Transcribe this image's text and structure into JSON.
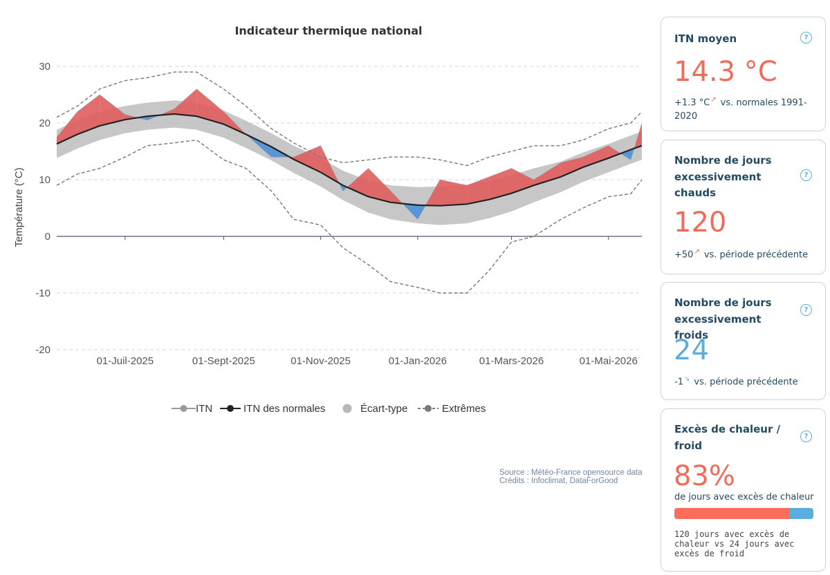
{
  "chart": {
    "title": "Indicateur thermique national",
    "ylabel": "Température (°C)",
    "y_ticks": [
      30,
      20,
      10,
      0,
      -10,
      -20
    ],
    "x_ticks": [
      "01-Juil-2025",
      "01-Sept-2025",
      "01-Nov-2025",
      "01-Jan-2026",
      "01-Mars-2026",
      "01-Mai-2026"
    ],
    "legend": [
      "ITN",
      "ITN des normales",
      "Écart-type",
      "Extrêmes"
    ],
    "source_line1": "Source : Météo-France opensource data",
    "source_line2": "Crédits : Infoclimat, DataForGood"
  },
  "chart_data": {
    "type": "area",
    "title": "Indicateur thermique national",
    "xlabel": "",
    "ylabel": "Température (°C)",
    "ylim": [
      -20,
      30
    ],
    "xlim": [
      "2025-05-19",
      "2026-05-22"
    ],
    "grid": true,
    "legend_position": "bottom",
    "colors": {
      "warm_excess": "#e05d5d",
      "cold_excess": "#4a90d9",
      "normal": "#222222",
      "std_band": "#bdbdbd",
      "extremes": "#777777"
    },
    "x_dates": [
      "2025-05-19",
      "2025-06-01",
      "2025-06-15",
      "2025-07-01",
      "2025-07-15",
      "2025-08-01",
      "2025-08-15",
      "2025-09-01",
      "2025-09-15",
      "2025-10-01",
      "2025-10-15",
      "2025-11-01",
      "2025-11-15",
      "2025-12-01",
      "2025-12-15",
      "2026-01-01",
      "2026-01-15",
      "2026-02-01",
      "2026-02-15",
      "2026-03-01",
      "2026-03-15",
      "2026-04-01",
      "2026-04-15",
      "2026-05-01",
      "2026-05-15",
      "2026-05-22"
    ],
    "series": [
      {
        "name": "ITN des normales",
        "values": [
          16.3,
          18.0,
          19.5,
          20.6,
          21.2,
          21.6,
          21.2,
          19.8,
          18.0,
          15.8,
          13.6,
          11.3,
          9.0,
          7.0,
          6.0,
          5.5,
          5.4,
          5.7,
          6.5,
          7.6,
          9.0,
          10.5,
          12.2,
          13.8,
          15.3,
          16.0
        ]
      },
      {
        "name": "ITN",
        "values": [
          17.5,
          22.0,
          25.0,
          21.5,
          20.5,
          22.5,
          26.0,
          22.0,
          18.0,
          14.0,
          14.0,
          16.0,
          8.0,
          12.0,
          8.0,
          3.0,
          10.0,
          9.0,
          10.5,
          12.0,
          10.0,
          13.0,
          14.0,
          16.0,
          13.5,
          20.0
        ]
      },
      {
        "name": "Écart-type",
        "lower": [
          13.8,
          15.5,
          17.0,
          18.2,
          18.8,
          19.2,
          18.8,
          17.4,
          15.6,
          13.4,
          11.2,
          8.8,
          6.4,
          4.2,
          3.0,
          2.3,
          2.0,
          2.3,
          3.2,
          4.4,
          6.0,
          7.8,
          9.6,
          11.3,
          12.8,
          13.5
        ],
        "upper": [
          18.8,
          20.5,
          22.0,
          23.0,
          23.6,
          24.0,
          23.6,
          22.2,
          20.4,
          18.2,
          16.0,
          13.8,
          11.6,
          9.8,
          9.0,
          8.7,
          8.8,
          9.1,
          9.8,
          10.8,
          12.0,
          13.2,
          14.8,
          16.3,
          17.8,
          18.5
        ]
      },
      {
        "name": "Extrêmes",
        "lower": [
          9.0,
          11.0,
          12.0,
          14.0,
          16.0,
          16.5,
          17.0,
          13.5,
          12.0,
          8.0,
          3.0,
          2.0,
          -2.0,
          -5.0,
          -8.0,
          -9.0,
          -10.0,
          -10.0,
          -6.0,
          -1.0,
          0.0,
          3.0,
          5.0,
          7.0,
          7.5,
          10.0
        ],
        "upper": [
          21.0,
          23.0,
          26.0,
          27.5,
          28.0,
          29.0,
          29.0,
          26.0,
          23.0,
          19.0,
          16.5,
          14.0,
          13.0,
          13.5,
          14.0,
          14.0,
          13.5,
          12.5,
          14.0,
          15.0,
          16.0,
          16.0,
          17.0,
          19.0,
          20.0,
          22.0
        ]
      }
    ]
  },
  "cards": [
    {
      "title": "ITN moyen",
      "value": "14.3 °C",
      "delta": "+1.3 °C",
      "direction": "up",
      "comparison": "vs. normales 1991-2020"
    },
    {
      "title": "Nombre de jours excessivement chauds",
      "value": "120",
      "delta": "+50",
      "direction": "up",
      "comparison": "vs. période précédente"
    },
    {
      "title": "Nombre de jours excessivement froids",
      "value": "24",
      "delta": "-1",
      "direction": "down",
      "comparison": "vs. période précédente"
    },
    {
      "title": "Excès de chaleur / froid",
      "value": "83%",
      "caption": "de jours avec excès de chaleur",
      "hot_fraction": 0.83,
      "detail": "120 jours avec excès de chaleur vs 24 jours avec excès de froid"
    }
  ],
  "icons": {
    "help": "?",
    "arrow_up": "↗",
    "arrow_down": "↘"
  }
}
